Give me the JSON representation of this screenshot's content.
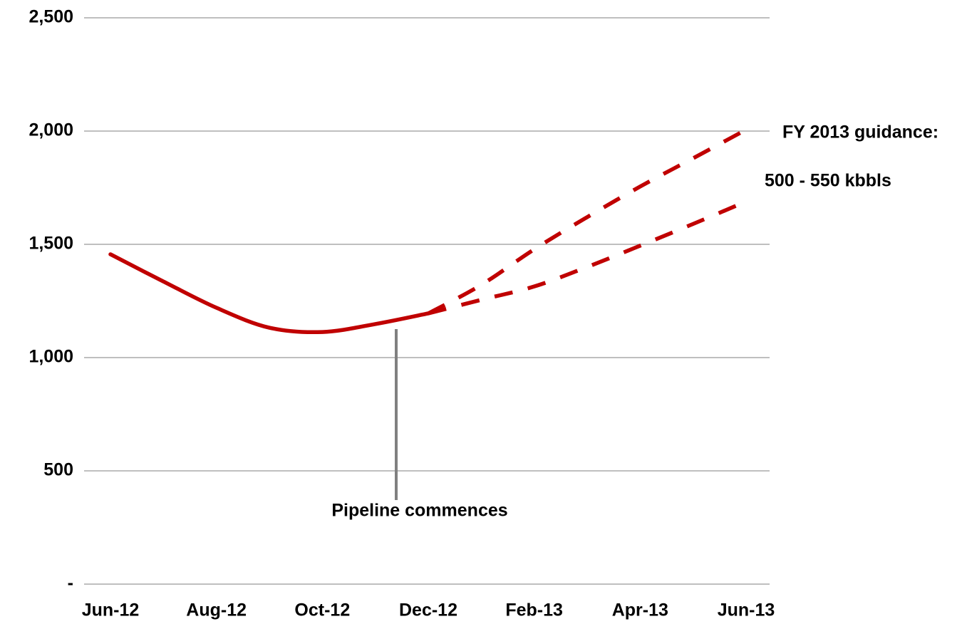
{
  "chart_data": {
    "type": "line",
    "categories": [
      "Jun-12",
      null,
      "Aug-12",
      null,
      "Oct-12",
      null,
      "Dec-12",
      null,
      "Feb-13",
      null,
      "Apr-13",
      null,
      "Jun-13"
    ],
    "series": [
      {
        "color": "#c00000",
        "dashed": false,
        "values": [
          1456,
          1336,
          1220,
          1132,
          1113,
          1148,
          1195,
          null,
          null,
          null,
          null,
          null,
          null
        ]
      },
      {
        "color": "#c00000",
        "dashed": true,
        "values": [
          null,
          null,
          null,
          null,
          null,
          null,
          1195,
          1321,
          1478,
          1620,
          1755,
          1880,
          2006
        ]
      },
      {
        "color": "#c00000",
        "dashed": true,
        "values": [
          null,
          null,
          null,
          null,
          null,
          null,
          1195,
          1255,
          1314,
          1400,
          1494,
          1590,
          1689
        ]
      }
    ],
    "ylim": [
      0,
      2500
    ],
    "yticks": [
      {
        "value": 0,
        "label": "-"
      },
      500,
      {
        "value": 1000,
        "label": "1,000"
      },
      {
        "value": 1500,
        "label": "1,500"
      },
      {
        "value": 2000,
        "label": "2,000"
      },
      {
        "value": 2500,
        "label": "2,500"
      }
    ],
    "grid": true,
    "annotations": [
      {
        "text": [
          "Pipeline commences"
        ]
      },
      {
        "text": [
          "FY 2013 guidance:",
          "500 - 550 kbbls"
        ]
      }
    ]
  }
}
